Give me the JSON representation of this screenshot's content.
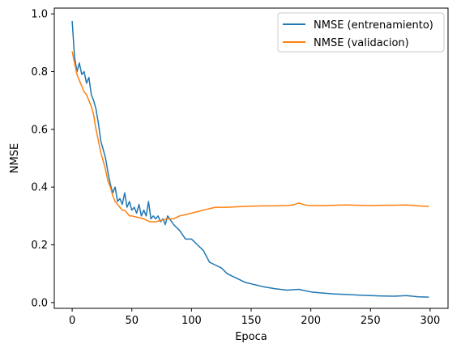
{
  "chart_data": {
    "type": "line",
    "title": "",
    "xlabel": "Epoca",
    "ylabel": "NMSE",
    "xlim": [
      -15,
      315
    ],
    "ylim": [
      -0.02,
      1.02
    ],
    "xticks": [
      0,
      50,
      100,
      150,
      200,
      250,
      300
    ],
    "yticks": [
      0.0,
      0.2,
      0.4,
      0.6,
      0.8,
      1.0
    ],
    "xtick_labels": [
      "0",
      "50",
      "100",
      "150",
      "200",
      "250",
      "300"
    ],
    "ytick_labels": [
      "0.0",
      "0.2",
      "0.4",
      "0.6",
      "0.8",
      "1.0"
    ],
    "grid": false,
    "legend_position": "top-right",
    "series": [
      {
        "name": "NMSE (entrenamiento)",
        "color": "#1f77b4",
        "x": [
          0,
          2,
          4,
          6,
          8,
          10,
          12,
          14,
          16,
          18,
          20,
          22,
          24,
          26,
          28,
          30,
          32,
          34,
          36,
          38,
          40,
          42,
          44,
          46,
          48,
          50,
          52,
          54,
          56,
          58,
          60,
          62,
          64,
          66,
          68,
          70,
          72,
          74,
          76,
          78,
          80,
          85,
          90,
          95,
          100,
          105,
          110,
          115,
          120,
          125,
          130,
          135,
          140,
          145,
          150,
          155,
          160,
          170,
          180,
          190,
          200,
          210,
          220,
          230,
          240,
          250,
          260,
          270,
          280,
          290,
          299
        ],
        "y": [
          0.975,
          0.85,
          0.8,
          0.83,
          0.79,
          0.8,
          0.76,
          0.78,
          0.72,
          0.7,
          0.67,
          0.62,
          0.56,
          0.53,
          0.5,
          0.45,
          0.41,
          0.38,
          0.4,
          0.35,
          0.36,
          0.34,
          0.38,
          0.33,
          0.35,
          0.32,
          0.33,
          0.31,
          0.34,
          0.3,
          0.32,
          0.3,
          0.35,
          0.29,
          0.3,
          0.29,
          0.3,
          0.28,
          0.29,
          0.27,
          0.3,
          0.27,
          0.25,
          0.22,
          0.22,
          0.2,
          0.18,
          0.14,
          0.13,
          0.12,
          0.1,
          0.09,
          0.08,
          0.07,
          0.065,
          0.06,
          0.055,
          0.048,
          0.043,
          0.046,
          0.037,
          0.033,
          0.03,
          0.028,
          0.026,
          0.024,
          0.023,
          0.022,
          0.024,
          0.02,
          0.019
        ]
      },
      {
        "name": "NMSE (validacion)",
        "color": "#ff7f0e",
        "x": [
          0,
          2,
          4,
          6,
          8,
          10,
          12,
          14,
          16,
          18,
          20,
          22,
          24,
          26,
          28,
          30,
          32,
          34,
          36,
          38,
          40,
          42,
          44,
          46,
          48,
          50,
          55,
          60,
          65,
          70,
          75,
          80,
          85,
          90,
          95,
          100,
          105,
          110,
          115,
          120,
          130,
          140,
          150,
          160,
          170,
          180,
          185,
          190,
          195,
          200,
          210,
          220,
          230,
          240,
          250,
          260,
          270,
          280,
          290,
          299
        ],
        "y": [
          0.87,
          0.83,
          0.79,
          0.77,
          0.75,
          0.73,
          0.72,
          0.7,
          0.68,
          0.65,
          0.6,
          0.56,
          0.52,
          0.49,
          0.46,
          0.42,
          0.4,
          0.37,
          0.35,
          0.34,
          0.33,
          0.32,
          0.32,
          0.31,
          0.3,
          0.3,
          0.295,
          0.29,
          0.28,
          0.28,
          0.285,
          0.29,
          0.29,
          0.3,
          0.305,
          0.31,
          0.315,
          0.32,
          0.325,
          0.33,
          0.33,
          0.332,
          0.334,
          0.335,
          0.335,
          0.336,
          0.338,
          0.345,
          0.338,
          0.336,
          0.336,
          0.337,
          0.338,
          0.337,
          0.336,
          0.337,
          0.337,
          0.338,
          0.335,
          0.333
        ]
      }
    ]
  }
}
